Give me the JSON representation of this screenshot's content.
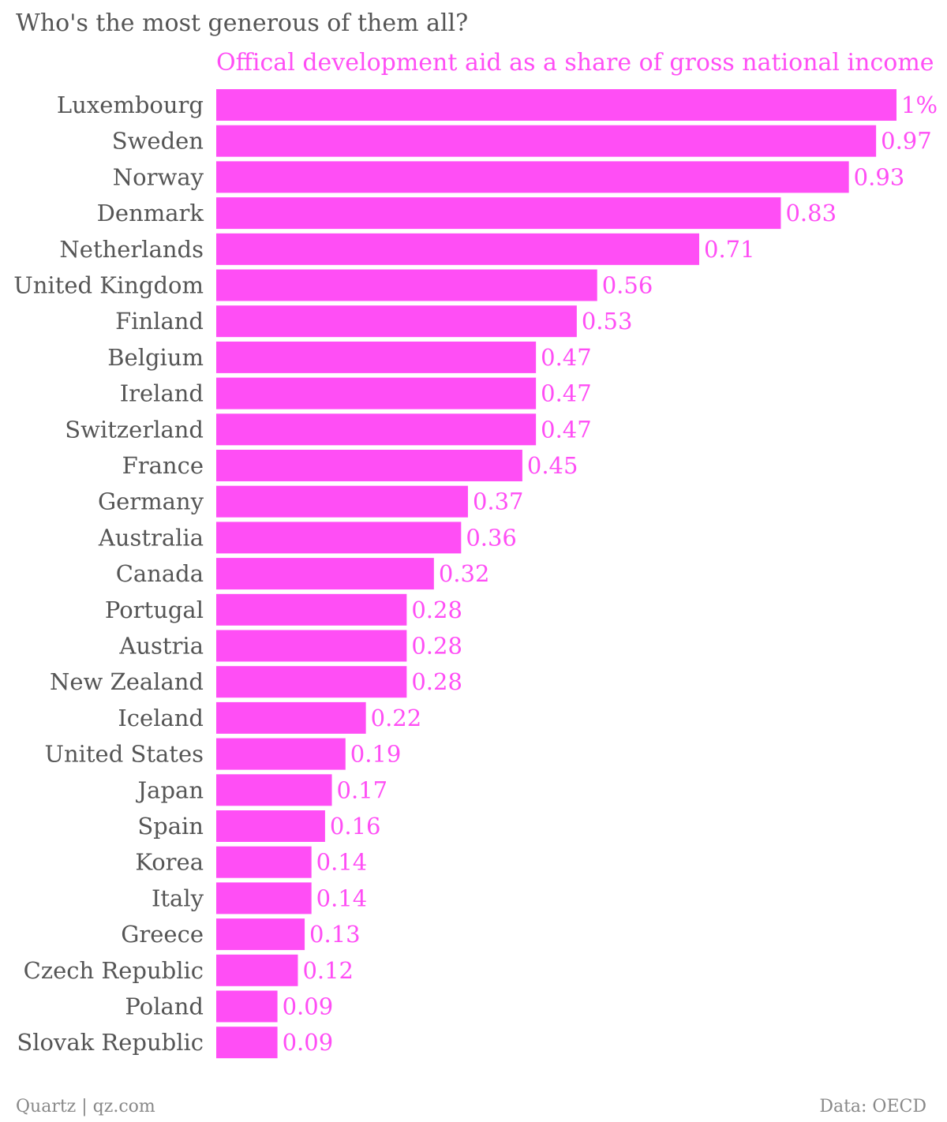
{
  "chart_data": {
    "type": "bar",
    "orientation": "horizontal",
    "title": "Who's the most generous of them all?",
    "subtitle": "Offical development aid as a share of gross national income",
    "categories": [
      "Luxembourg",
      "Sweden",
      "Norway",
      "Denmark",
      "Netherlands",
      "United Kingdom",
      "Finland",
      "Belgium",
      "Ireland",
      "Switzerland",
      "France",
      "Germany",
      "Australia",
      "Canada",
      "Portugal",
      "Austria",
      "New Zealand",
      "Iceland",
      "United States",
      "Japan",
      "Spain",
      "Korea",
      "Italy",
      "Greece",
      "Czech Republic",
      "Poland",
      "Slovak Republic"
    ],
    "values": [
      1,
      0.97,
      0.93,
      0.83,
      0.71,
      0.56,
      0.53,
      0.47,
      0.47,
      0.47,
      0.45,
      0.37,
      0.36,
      0.32,
      0.28,
      0.28,
      0.28,
      0.22,
      0.19,
      0.17,
      0.16,
      0.14,
      0.14,
      0.13,
      0.12,
      0.09,
      0.09
    ],
    "value_labels": [
      "1%",
      "0.97",
      "0.93",
      "0.83",
      "0.71",
      "0.56",
      "0.53",
      "0.47",
      "0.47",
      "0.47",
      "0.45",
      "0.37",
      "0.36",
      "0.32",
      "0.28",
      "0.28",
      "0.28",
      "0.22",
      "0.19",
      "0.17",
      "0.16",
      "0.14",
      "0.14",
      "0.13",
      "0.12",
      "0.09",
      "0.09"
    ],
    "xlim": [
      0,
      1
    ],
    "grid": false,
    "legend": "none",
    "bar_color": "#ff4ef5",
    "label_color": "#555555"
  },
  "footer": {
    "source_left": "Quartz | qz.com",
    "source_right": "Data: OECD"
  }
}
